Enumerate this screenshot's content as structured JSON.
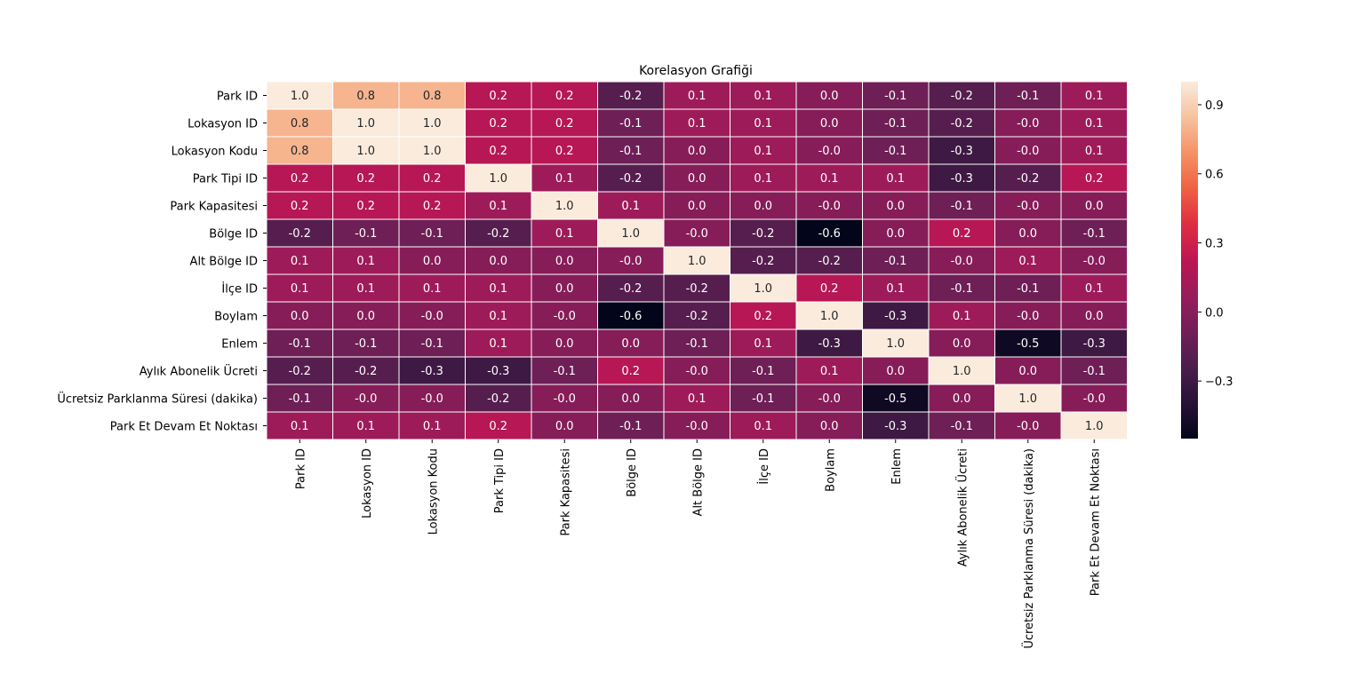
{
  "chart_data": {
    "type": "heatmap",
    "title": "Korelasyon Grafiği",
    "labels": [
      "Park ID",
      "Lokasyon ID",
      "Lokasyon Kodu",
      "Park Tipi ID",
      "Park Kapasitesi",
      "Bölge ID",
      "Alt Bölge ID",
      "İlçe ID",
      "Boylam",
      "Enlem",
      "Aylık Abonelik Ücreti",
      "Ücretsiz Parklanma Süresi (dakika)",
      "Park Et Devam Et Noktası"
    ],
    "values": [
      [
        1.0,
        0.8,
        0.8,
        0.2,
        0.2,
        -0.2,
        0.1,
        0.1,
        0.0,
        -0.1,
        -0.2,
        -0.1,
        0.1
      ],
      [
        0.8,
        1.0,
        1.0,
        0.2,
        0.2,
        -0.1,
        0.1,
        0.1,
        0.0,
        -0.1,
        -0.2,
        -0.0,
        0.1
      ],
      [
        0.8,
        1.0,
        1.0,
        0.2,
        0.2,
        -0.1,
        0.0,
        0.1,
        -0.0,
        -0.1,
        -0.3,
        -0.0,
        0.1
      ],
      [
        0.2,
        0.2,
        0.2,
        1.0,
        0.1,
        -0.2,
        0.0,
        0.1,
        0.1,
        0.1,
        -0.3,
        -0.2,
        0.2
      ],
      [
        0.2,
        0.2,
        0.2,
        0.1,
        1.0,
        0.1,
        0.0,
        0.0,
        -0.0,
        0.0,
        -0.1,
        -0.0,
        0.0
      ],
      [
        -0.2,
        -0.1,
        -0.1,
        -0.2,
        0.1,
        1.0,
        -0.0,
        -0.2,
        -0.6,
        0.0,
        0.2,
        0.0,
        -0.1
      ],
      [
        0.1,
        0.1,
        0.0,
        0.0,
        0.0,
        -0.0,
        1.0,
        -0.2,
        -0.2,
        -0.1,
        -0.0,
        0.1,
        -0.0
      ],
      [
        0.1,
        0.1,
        0.1,
        0.1,
        0.0,
        -0.2,
        -0.2,
        1.0,
        0.2,
        0.1,
        -0.1,
        -0.1,
        0.1
      ],
      [
        0.0,
        0.0,
        -0.0,
        0.1,
        -0.0,
        -0.6,
        -0.2,
        0.2,
        1.0,
        -0.3,
        0.1,
        -0.0,
        0.0
      ],
      [
        -0.1,
        -0.1,
        -0.1,
        0.1,
        0.0,
        0.0,
        -0.1,
        0.1,
        -0.3,
        1.0,
        0.0,
        -0.5,
        -0.3
      ],
      [
        -0.2,
        -0.2,
        -0.3,
        -0.3,
        -0.1,
        0.2,
        -0.0,
        -0.1,
        0.1,
        0.0,
        1.0,
        0.0,
        -0.1
      ],
      [
        -0.1,
        -0.0,
        -0.0,
        -0.2,
        -0.0,
        0.0,
        0.1,
        -0.1,
        -0.0,
        -0.5,
        0.0,
        1.0,
        -0.0
      ],
      [
        0.1,
        0.1,
        0.1,
        0.2,
        0.0,
        -0.1,
        -0.0,
        0.1,
        0.0,
        -0.3,
        -0.1,
        -0.0,
        1.0
      ]
    ],
    "value_labels": [
      [
        "1.0",
        "0.8",
        "0.8",
        "0.2",
        "0.2",
        "-0.2",
        "0.1",
        "0.1",
        "0.0",
        "-0.1",
        "-0.2",
        "-0.1",
        "0.1"
      ],
      [
        "0.8",
        "1.0",
        "1.0",
        "0.2",
        "0.2",
        "-0.1",
        "0.1",
        "0.1",
        "0.0",
        "-0.1",
        "-0.2",
        "-0.0",
        "0.1"
      ],
      [
        "0.8",
        "1.0",
        "1.0",
        "0.2",
        "0.2",
        "-0.1",
        "0.0",
        "0.1",
        "-0.0",
        "-0.1",
        "-0.3",
        "-0.0",
        "0.1"
      ],
      [
        "0.2",
        "0.2",
        "0.2",
        "1.0",
        "0.1",
        "-0.2",
        "0.0",
        "0.1",
        "0.1",
        "0.1",
        "-0.3",
        "-0.2",
        "0.2"
      ],
      [
        "0.2",
        "0.2",
        "0.2",
        "0.1",
        "1.0",
        "0.1",
        "0.0",
        "0.0",
        "-0.0",
        "0.0",
        "-0.1",
        "-0.0",
        "0.0"
      ],
      [
        "-0.2",
        "-0.1",
        "-0.1",
        "-0.2",
        "0.1",
        "1.0",
        "-0.0",
        "-0.2",
        "-0.6",
        "0.0",
        "0.2",
        "0.0",
        "-0.1"
      ],
      [
        "0.1",
        "0.1",
        "0.0",
        "0.0",
        "0.0",
        "-0.0",
        "1.0",
        "-0.2",
        "-0.2",
        "-0.1",
        "-0.0",
        "0.1",
        "-0.0"
      ],
      [
        "0.1",
        "0.1",
        "0.1",
        "0.1",
        "0.0",
        "-0.2",
        "-0.2",
        "1.0",
        "0.2",
        "0.1",
        "-0.1",
        "-0.1",
        "0.1"
      ],
      [
        "0.0",
        "0.0",
        "-0.0",
        "0.1",
        "-0.0",
        "-0.6",
        "-0.2",
        "0.2",
        "1.0",
        "-0.3",
        "0.1",
        "-0.0",
        "0.0"
      ],
      [
        "-0.1",
        "-0.1",
        "-0.1",
        "0.1",
        "0.0",
        "0.0",
        "-0.1",
        "0.1",
        "-0.3",
        "1.0",
        "0.0",
        "-0.5",
        "-0.3"
      ],
      [
        "-0.2",
        "-0.2",
        "-0.3",
        "-0.3",
        "-0.1",
        "0.2",
        "-0.0",
        "-0.1",
        "0.1",
        "0.0",
        "1.0",
        "0.0",
        "-0.1"
      ],
      [
        "-0.1",
        "-0.0",
        "-0.0",
        "-0.2",
        "-0.0",
        "0.0",
        "0.1",
        "-0.1",
        "-0.0",
        "-0.5",
        "0.0",
        "1.0",
        "-0.0"
      ],
      [
        "0.1",
        "0.1",
        "0.1",
        "0.2",
        "0.0",
        "-0.1",
        "-0.0",
        "0.1",
        "0.0",
        "-0.3",
        "-0.1",
        "-0.0",
        "1.0"
      ]
    ],
    "colorbar": {
      "colormap": "rocket",
      "vmin": -0.55,
      "vmax": 1.0,
      "ticks": [
        0.9,
        0.6,
        0.3,
        0.0,
        -0.3
      ],
      "tick_labels": [
        "0.9",
        "0.6",
        "0.3",
        "0.0",
        "−0.3"
      ]
    },
    "grid_line_color": "#ffffff"
  }
}
